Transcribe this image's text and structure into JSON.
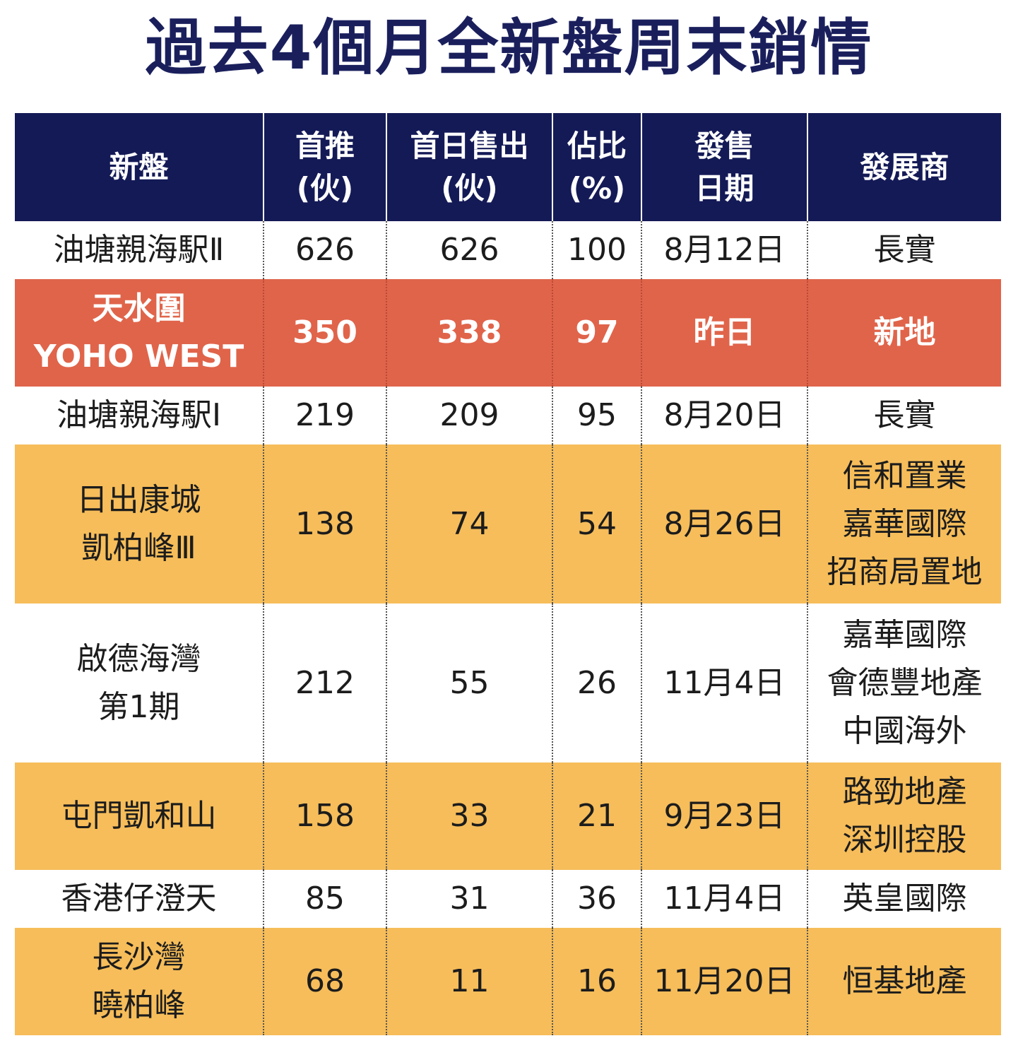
{
  "title": "過去4個月全新盤周末銷情",
  "colors": {
    "header_bg": "#141a56",
    "title": "#1a1f5c",
    "highlight_row": "#e0644a",
    "yellow_row": "#f6bd5a"
  },
  "chart_data": {
    "type": "table",
    "title": "過去4個月全新盤周末銷情",
    "columns": [
      [
        "新盤"
      ],
      [
        "首推",
        "(伙)"
      ],
      [
        "首日售出",
        "(伙)"
      ],
      [
        "佔比",
        "(%)"
      ],
      [
        "發售",
        "日期"
      ],
      [
        "發展商"
      ]
    ],
    "rows": [
      {
        "style": "white",
        "height": 82,
        "project": [
          "油塘親海駅Ⅱ"
        ],
        "launched": "626",
        "sold": "626",
        "ratio": "100",
        "date": "8月12日",
        "developer": [
          "長實"
        ]
      },
      {
        "style": "red",
        "height": 152,
        "project": [
          "天水圍",
          "YOHO WEST"
        ],
        "launched": "350",
        "sold": "338",
        "ratio": "97",
        "date": "昨日",
        "developer": [
          "新地"
        ]
      },
      {
        "style": "white",
        "height": 82,
        "project": [
          "油塘親海駅Ⅰ"
        ],
        "launched": "219",
        "sold": "209",
        "ratio": "95",
        "date": "8月20日",
        "developer": [
          "長實"
        ]
      },
      {
        "style": "yellow",
        "height": 225,
        "project": [
          "日出康城",
          "凱柏峰Ⅲ"
        ],
        "launched": "138",
        "sold": "74",
        "ratio": "54",
        "date": "8月26日",
        "developer": [
          "信和置業",
          "嘉華國際",
          "招商局置地"
        ]
      },
      {
        "style": "white",
        "height": 225,
        "project": [
          "啟德海灣",
          "第1期"
        ],
        "launched": "212",
        "sold": "55",
        "ratio": "26",
        "date": "11月4日",
        "developer": [
          "嘉華國際",
          "會德豐地產",
          "中國海外"
        ]
      },
      {
        "style": "yellow",
        "height": 152,
        "project": [
          "屯門凱和山"
        ],
        "launched": "158",
        "sold": "33",
        "ratio": "21",
        "date": "9月23日",
        "developer": [
          "路勁地產",
          "深圳控股"
        ]
      },
      {
        "style": "white",
        "height": 82,
        "project": [
          "香港仔澄天"
        ],
        "launched": "85",
        "sold": "31",
        "ratio": "36",
        "date": "11月4日",
        "developer": [
          "英皇國際"
        ]
      },
      {
        "style": "yellow",
        "height": 152,
        "project": [
          "長沙灣",
          "曉柏峰"
        ],
        "launched": "68",
        "sold": "11",
        "ratio": "16",
        "date": "11月20日",
        "developer": [
          "恒基地產"
        ]
      }
    ]
  }
}
